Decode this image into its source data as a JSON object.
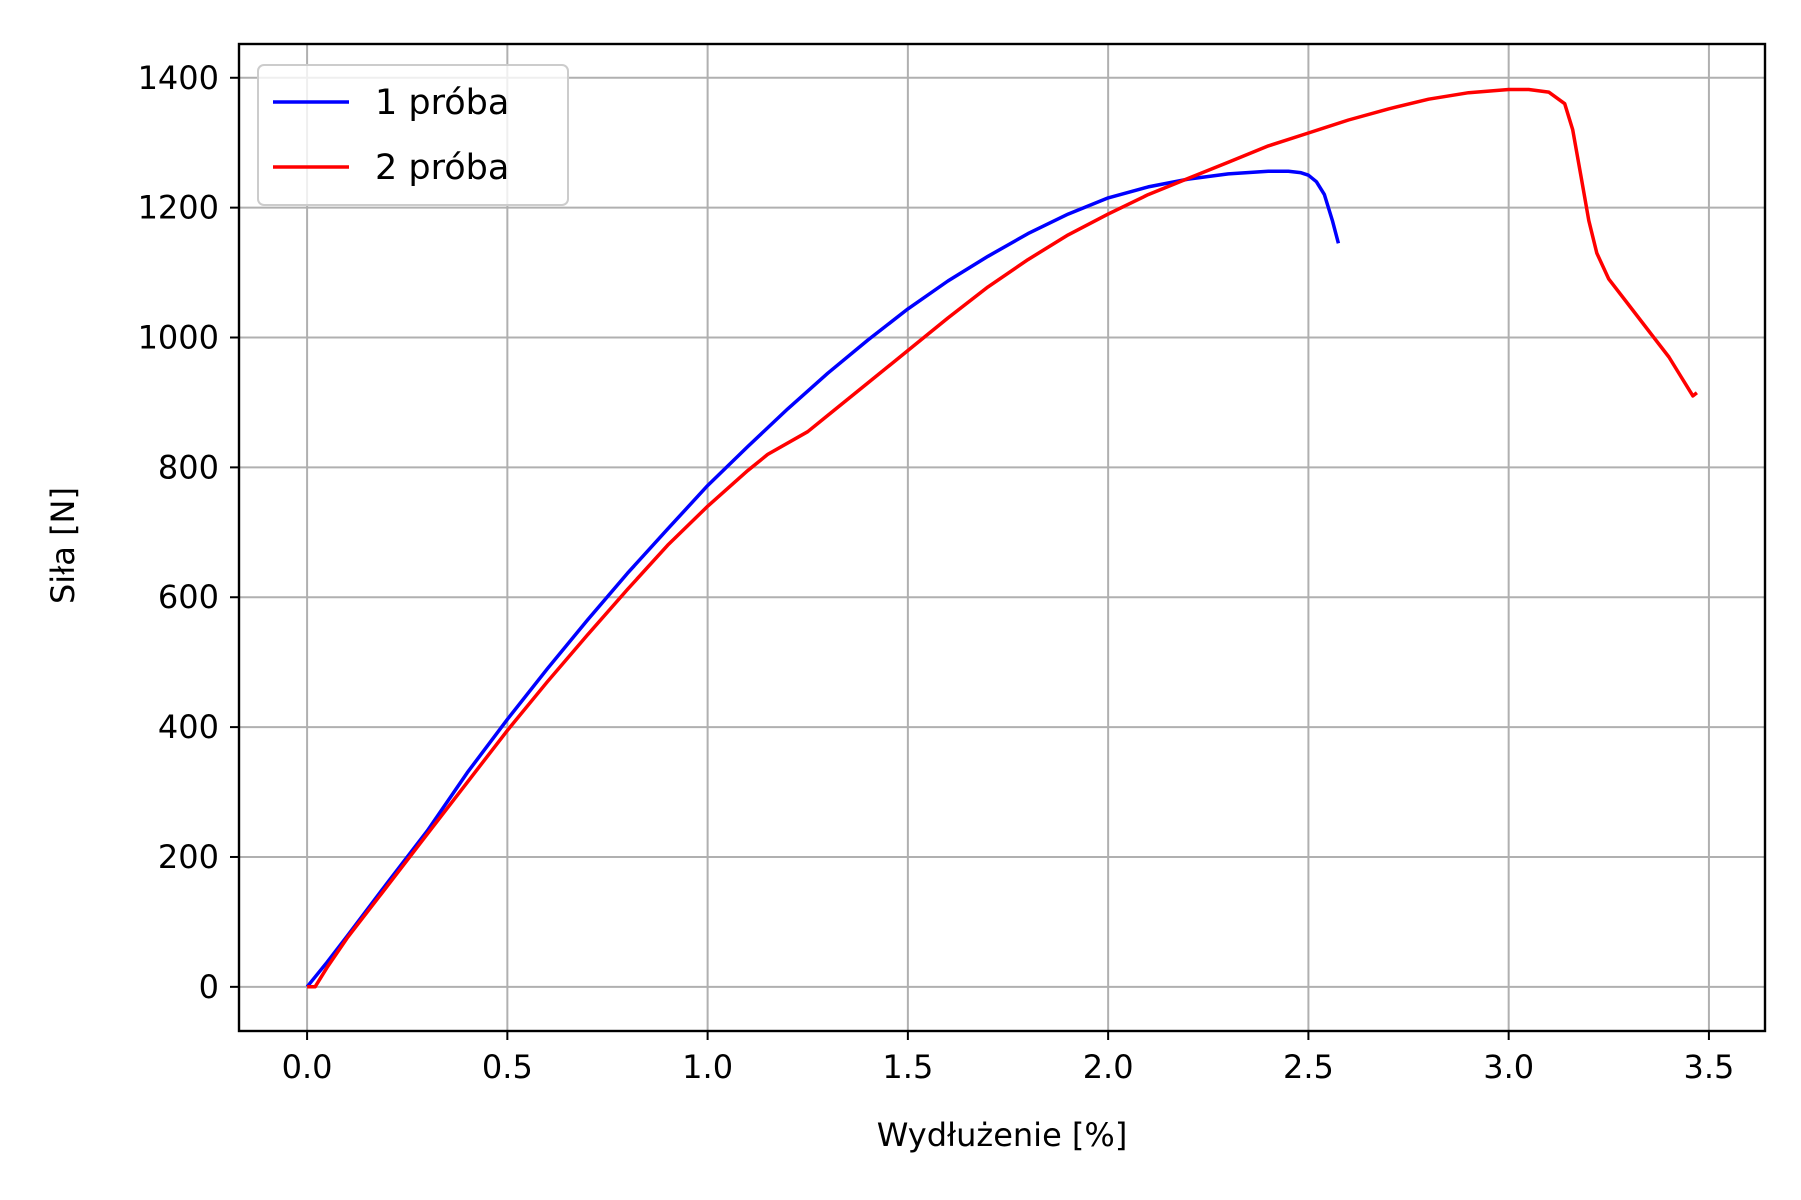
{
  "chart_data": {
    "type": "line",
    "title": "",
    "xlabel": "Wydłużenie [%]",
    "ylabel": "Siła [N]",
    "xlim": [
      -0.17,
      3.64
    ],
    "ylim": [
      -68,
      1452
    ],
    "xticks": [
      0.0,
      0.5,
      1.0,
      1.5,
      2.0,
      2.5,
      3.0,
      3.5
    ],
    "xtick_labels": [
      "0.0",
      "0.5",
      "1.0",
      "1.5",
      "2.0",
      "2.5",
      "3.0",
      "3.5"
    ],
    "yticks": [
      0,
      200,
      400,
      600,
      800,
      1000,
      1200,
      1400
    ],
    "ytick_labels": [
      "0",
      "200",
      "400",
      "600",
      "800",
      "1000",
      "1200",
      "1400"
    ],
    "grid": true,
    "legend_position": "upper-left",
    "series": [
      {
        "name": "1 próba",
        "color": "#0000ff",
        "x": [
          0.0,
          0.05,
          0.1,
          0.2,
          0.3,
          0.4,
          0.5,
          0.6,
          0.7,
          0.8,
          0.9,
          1.0,
          1.1,
          1.2,
          1.3,
          1.4,
          1.5,
          1.6,
          1.7,
          1.8,
          1.9,
          2.0,
          2.1,
          2.2,
          2.3,
          2.4,
          2.45,
          2.48,
          2.5,
          2.52,
          2.54,
          2.56,
          2.575
        ],
        "y": [
          0,
          38,
          78,
          160,
          240,
          330,
          412,
          490,
          565,
          637,
          705,
          772,
          832,
          890,
          945,
          996,
          1044,
          1087,
          1125,
          1160,
          1190,
          1215,
          1232,
          1244,
          1252,
          1256,
          1256,
          1254,
          1250,
          1240,
          1220,
          1180,
          1145
        ]
      },
      {
        "name": "2 próba",
        "color": "#ff0000",
        "x": [
          0.0,
          0.02,
          0.05,
          0.1,
          0.2,
          0.3,
          0.4,
          0.5,
          0.6,
          0.7,
          0.8,
          0.9,
          1.0,
          1.1,
          1.15,
          1.25,
          1.3,
          1.4,
          1.5,
          1.6,
          1.7,
          1.8,
          1.9,
          2.0,
          2.1,
          2.2,
          2.3,
          2.4,
          2.5,
          2.6,
          2.7,
          2.8,
          2.9,
          3.0,
          3.05,
          3.1,
          3.14,
          3.16,
          3.18,
          3.2,
          3.22,
          3.25,
          3.3,
          3.35,
          3.4,
          3.43,
          3.46,
          3.47
        ],
        "y": [
          0,
          0,
          30,
          75,
          155,
          235,
          315,
          395,
          470,
          542,
          612,
          680,
          740,
          795,
          820,
          855,
          880,
          930,
          980,
          1030,
          1078,
          1120,
          1158,
          1190,
          1220,
          1245,
          1270,
          1295,
          1315,
          1335,
          1352,
          1367,
          1377,
          1382,
          1382,
          1378,
          1360,
          1320,
          1250,
          1180,
          1130,
          1090,
          1050,
          1010,
          970,
          940,
          910,
          915
        ]
      }
    ]
  }
}
